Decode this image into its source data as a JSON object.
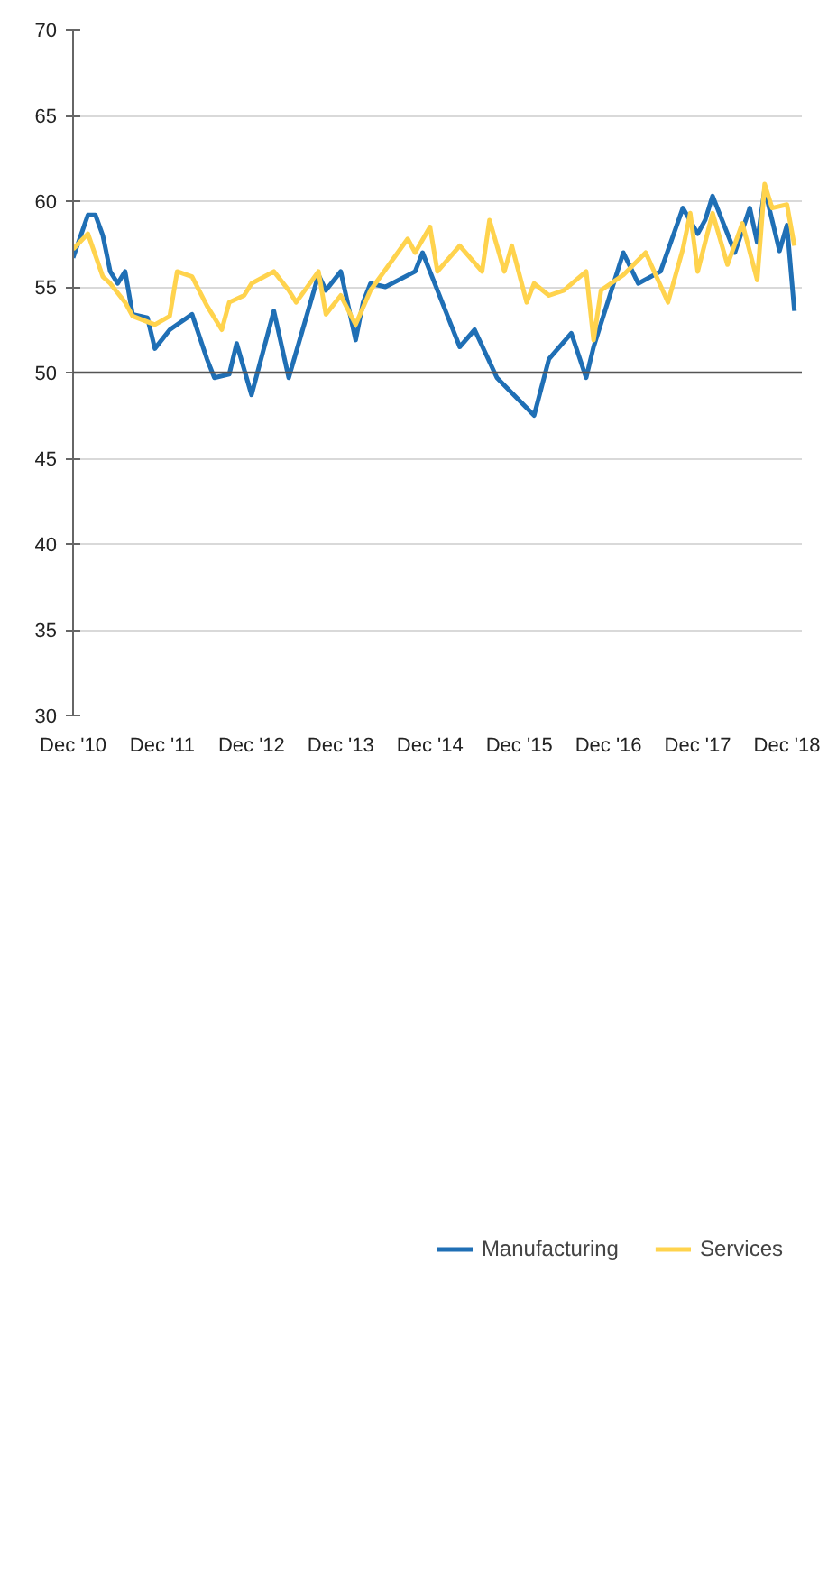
{
  "chart_data": {
    "type": "line",
    "xlim": [
      "2010-12",
      "2019-02"
    ],
    "xticks": [
      {
        "value": "2010-12",
        "label": "Dec '10"
      },
      {
        "value": "2011-12",
        "label": "Dec '11"
      },
      {
        "value": "2012-12",
        "label": "Dec '12"
      },
      {
        "value": "2013-12",
        "label": "Dec '13"
      },
      {
        "value": "2014-12",
        "label": "Dec '14"
      },
      {
        "value": "2015-12",
        "label": "Dec '15"
      },
      {
        "value": "2016-12",
        "label": "Dec '16"
      },
      {
        "value": "2017-12",
        "label": "Dec '17"
      },
      {
        "value": "2018-12",
        "label": "Dec '18"
      }
    ],
    "ylim": [
      30,
      70
    ],
    "yticks": [
      30,
      35,
      40,
      45,
      50,
      55,
      60,
      65,
      70
    ],
    "grid": "y",
    "legend": "bottom",
    "line_style": "solid",
    "marker": "none",
    "ref_lines": [
      {
        "axis": "y",
        "value": 50,
        "color": "#555555"
      }
    ],
    "series": [
      {
        "name": "Manufacturing",
        "color": "#1f6fb5",
        "x": [
          "2010-12",
          "2011-02",
          "2011-03",
          "2011-04",
          "2011-05",
          "2011-06",
          "2011-07",
          "2011-08",
          "2011-10",
          "2011-11",
          "2012-01",
          "2012-02",
          "2012-04",
          "2012-06",
          "2012-07",
          "2012-09",
          "2012-10",
          "2012-12",
          "2013-03",
          "2013-05",
          "2013-09",
          "2013-10",
          "2013-12",
          "2014-02",
          "2014-03",
          "2014-04",
          "2014-06",
          "2014-10",
          "2014-11",
          "2014-12",
          "2015-03",
          "2015-04",
          "2015-06",
          "2015-09",
          "2016-02",
          "2016-04",
          "2016-07",
          "2016-09",
          "2016-10",
          "2017-02",
          "2017-04",
          "2017-07",
          "2017-10",
          "2017-12",
          "2018-01",
          "2018-02",
          "2018-05",
          "2018-07",
          "2018-08",
          "2018-09",
          "2018-11",
          "2018-12",
          "2019-01"
        ],
        "values": [
          56.7,
          59.2,
          59.2,
          58.0,
          55.9,
          55.2,
          55.9,
          53.4,
          53.2,
          51.4,
          52.5,
          52.8,
          53.4,
          50.8,
          49.7,
          49.9,
          51.7,
          48.7,
          53.6,
          49.7,
          55.7,
          54.8,
          55.9,
          51.9,
          54.1,
          55.2,
          55.0,
          55.9,
          57.0,
          55.9,
          52.6,
          51.5,
          52.5,
          49.7,
          47.5,
          50.8,
          52.3,
          49.7,
          51.5,
          57.0,
          55.2,
          55.9,
          59.6,
          58.1,
          58.9,
          60.3,
          57.0,
          59.6,
          57.6,
          60.7,
          57.1,
          58.6,
          53.6
        ]
      },
      {
        "name": "Services",
        "color": "#ffd34d",
        "x": [
          "2010-12",
          "2011-02",
          "2011-04",
          "2011-05",
          "2011-07",
          "2011-08",
          "2011-11",
          "2012-01",
          "2012-02",
          "2012-04",
          "2012-06",
          "2012-08",
          "2012-09",
          "2012-11",
          "2012-12",
          "2013-03",
          "2013-05",
          "2013-06",
          "2013-09",
          "2013-10",
          "2013-12",
          "2014-02",
          "2014-04",
          "2014-09",
          "2014-10",
          "2014-12",
          "2015-01",
          "2015-04",
          "2015-07",
          "2015-08",
          "2015-10",
          "2015-11",
          "2016-01",
          "2016-02",
          "2016-04",
          "2016-06",
          "2016-09",
          "2016-10",
          "2016-11",
          "2017-02",
          "2017-05",
          "2017-08",
          "2017-10",
          "2017-11",
          "2017-12",
          "2018-02",
          "2018-04",
          "2018-06",
          "2018-08",
          "2018-09",
          "2018-10",
          "2018-12",
          "2019-01"
        ],
        "values": [
          57.2,
          58.1,
          55.6,
          55.2,
          54.1,
          53.3,
          52.8,
          53.3,
          55.9,
          55.6,
          53.9,
          52.5,
          54.1,
          54.5,
          55.2,
          55.9,
          54.8,
          54.1,
          55.9,
          53.4,
          54.5,
          52.8,
          54.8,
          57.8,
          57.0,
          58.5,
          55.9,
          57.4,
          55.9,
          58.9,
          55.9,
          57.4,
          54.1,
          55.2,
          54.5,
          54.8,
          55.9,
          51.9,
          54.8,
          55.7,
          57.0,
          54.1,
          57.2,
          59.3,
          55.9,
          59.3,
          56.3,
          58.7,
          55.4,
          61.0,
          59.6,
          59.8,
          57.4
        ]
      }
    ]
  }
}
